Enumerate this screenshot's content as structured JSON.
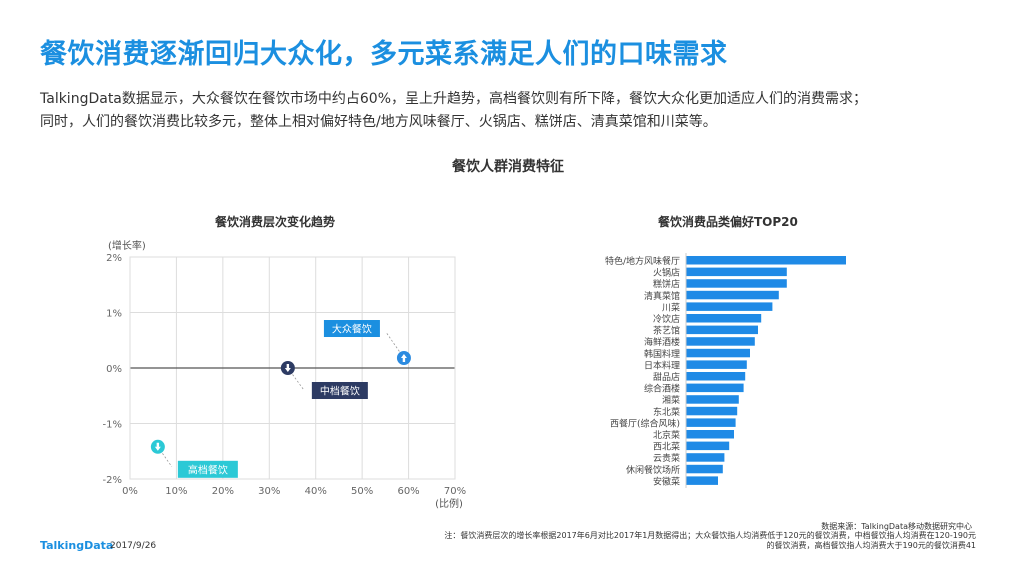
{
  "header": {
    "title": "餐饮消费逐渐回归大众化，多元菜系满足人们的口味需求",
    "intro_line1": "TalkingData数据显示，大众餐饮在餐饮市场中约占60%，呈上升趋势，高档餐饮则有所下降，餐饮大众化更加适应人们的消费需求；",
    "intro_line2": "同时，人们的餐饮消费比较多元，整体上相对偏好特色/地方风味餐厅、火锅店、糕饼店、清真菜馆和川菜等。"
  },
  "section_title": "餐饮人群消费特征",
  "colors": {
    "accent": "#1b8fe0",
    "bar": "#1f8ae6",
    "teal": "#2cc9d6",
    "navy": "#2d3b63",
    "grid": "#dddddd"
  },
  "chart_data": [
    {
      "type": "scatter",
      "title": "餐饮消费层次变化趋势",
      "ylabel": "(增长率)",
      "xlabel": "(比例)",
      "xlim": [
        0,
        70
      ],
      "ylim": [
        -2,
        2
      ],
      "x_ticks": [
        "0%",
        "10%",
        "20%",
        "30%",
        "40%",
        "50%",
        "60%",
        "70%"
      ],
      "y_ticks": [
        "2%",
        "1%",
        "0%",
        "-1%",
        "-2%"
      ],
      "grid": true,
      "points": [
        {
          "name": "大众餐饮",
          "x": 59,
          "y": 0.18,
          "direction": "up",
          "color": "#2c8be0"
        },
        {
          "name": "中档餐饮",
          "x": 34,
          "y": 0.0,
          "direction": "down",
          "color": "#2d3b63"
        },
        {
          "name": "高档餐饮",
          "x": 6,
          "y": -1.42,
          "direction": "down",
          "color": "#2cc9d6"
        }
      ]
    },
    {
      "type": "bar",
      "orientation": "horizontal",
      "title": "餐饮消费品类偏好TOP20",
      "categories": [
        "特色/地方风味餐厅",
        "火锅店",
        "糕饼店",
        "清真菜馆",
        "川菜",
        "冷饮店",
        "茶艺馆",
        "海鲜酒楼",
        "韩国料理",
        "日本料理",
        "甜品店",
        "综合酒楼",
        "湘菜",
        "东北菜",
        "西餐厅(综合风味)",
        "北京菜",
        "西北菜",
        "云贵菜",
        "休闲餐饮场所",
        "安徽菜"
      ],
      "values": [
        100,
        63,
        63,
        58,
        54,
        47,
        45,
        43,
        40,
        38,
        37,
        36,
        33,
        32,
        31,
        30,
        27,
        24,
        23,
        20
      ]
    }
  ],
  "footer": {
    "logo": "TalkingData",
    "date": "2017/9/26",
    "source": "数据来源：TalkingData移动数据研究中心",
    "note_line1": "注：餐饮消费层次的增长率根据2017年6月对比2017年1月数据得出；大众餐饮指人均消费低于120元的餐饮消费，中档餐饮指人均消费在120-190元",
    "note_line2": "的餐饮消费，高档餐饮指人均消费大于190元的餐饮消费41"
  }
}
